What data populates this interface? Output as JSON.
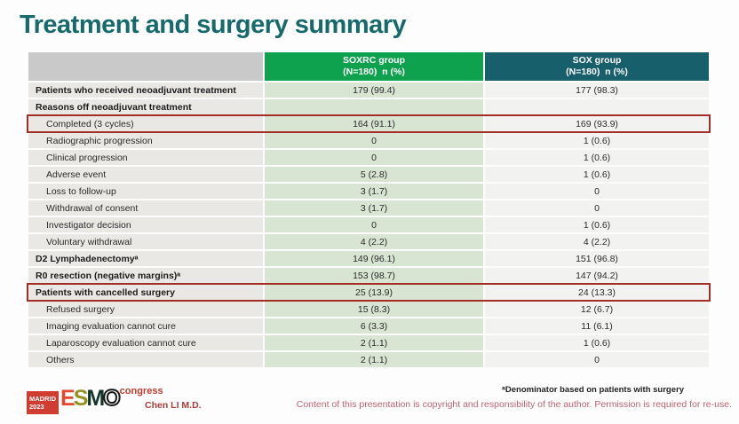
{
  "slide": {
    "title": "Treatment and surgery summary",
    "footnote": "ᵃDenominator based on patients with surgery",
    "copyright": "Content of this presentation is copyright and responsibility of the author.  Permission is required for re-use.",
    "author": "Chen LI M.D."
  },
  "logo": {
    "location": "MADRID",
    "year": "2023",
    "letters": [
      "E",
      "S",
      "M",
      "O"
    ],
    "congress": "congress"
  },
  "table": {
    "columns": [
      {
        "label": "",
        "sublabel": ""
      },
      {
        "label": "SOXRC group",
        "sublabel": "(N=180)  n (%)"
      },
      {
        "label": "SOX group",
        "sublabel": "(N=180)  n (%)"
      }
    ],
    "rows": [
      {
        "label": "Patients who received neoadjuvant treatment",
        "soxrc": "179 (99.4)",
        "sox": "177 (98.3)",
        "bold": true,
        "indent": false,
        "highlight": false
      },
      {
        "label": "Reasons off neoadjuvant treatment",
        "soxrc": "",
        "sox": "",
        "bold": true,
        "indent": false,
        "highlight": false
      },
      {
        "label": "Completed (3 cycles)",
        "soxrc": "164 (91.1)",
        "sox": "169 (93.9)",
        "bold": false,
        "indent": true,
        "highlight": true
      },
      {
        "label": "Radiographic progression",
        "soxrc": "0",
        "sox": "1 (0.6)",
        "bold": false,
        "indent": true,
        "highlight": false
      },
      {
        "label": "Clinical progression",
        "soxrc": "0",
        "sox": "1 (0.6)",
        "bold": false,
        "indent": true,
        "highlight": false
      },
      {
        "label": "Adverse event",
        "soxrc": "5 (2.8)",
        "sox": "1 (0.6)",
        "bold": false,
        "indent": true,
        "highlight": false
      },
      {
        "label": "Loss to follow-up",
        "soxrc": "3 (1.7)",
        "sox": "0",
        "bold": false,
        "indent": true,
        "highlight": false
      },
      {
        "label": "Withdrawal of consent",
        "soxrc": "3 (1.7)",
        "sox": "0",
        "bold": false,
        "indent": true,
        "highlight": false
      },
      {
        "label": "Investigator decision",
        "soxrc": "0",
        "sox": "1 (0.6)",
        "bold": false,
        "indent": true,
        "highlight": false
      },
      {
        "label": "Voluntary withdrawal",
        "soxrc": "4 (2.2)",
        "sox": "4 (2.2)",
        "bold": false,
        "indent": true,
        "highlight": false
      },
      {
        "label": "D2 Lymphadenectomyᵃ",
        "soxrc": "149 (96.1)",
        "sox": "151 (96.8)",
        "bold": true,
        "indent": false,
        "highlight": false
      },
      {
        "label": "R0 resection (negative margins)ᵃ",
        "soxrc": "153 (98.7)",
        "sox": "147 (94.2)",
        "bold": true,
        "indent": false,
        "highlight": false
      },
      {
        "label": "Patients with cancelled surgery",
        "soxrc": "25 (13.9)",
        "sox": "24 (13.3)",
        "bold": true,
        "indent": false,
        "highlight": true
      },
      {
        "label": "Refused surgery",
        "soxrc": "15 (8.3)",
        "sox": "12 (6.7)",
        "bold": false,
        "indent": true,
        "highlight": false
      },
      {
        "label": "Imaging evaluation cannot cure",
        "soxrc": "6 (3.3)",
        "sox": "11 (6.1)",
        "bold": false,
        "indent": true,
        "highlight": false
      },
      {
        "label": "Laparoscopy evaluation cannot cure",
        "soxrc": "2 (1.1)",
        "sox": "1 (0.6)",
        "bold": false,
        "indent": true,
        "highlight": false
      },
      {
        "label": "Others",
        "soxrc": "2 (1.1)",
        "sox": "0",
        "bold": false,
        "indent": true,
        "highlight": false
      }
    ]
  },
  "colors": {
    "title": "#176a6c",
    "header_soxrc_bg": "#0ea24f",
    "header_sox_bg": "#165f6b",
    "header_empty_bg": "#c9c9c9",
    "label_cell_bg": "#e9e8e5",
    "soxrc_cell_bg": "#d8e5d2",
    "sox_cell_bg": "#f2f3f0",
    "highlight_box": "#a32e25",
    "author_text": "#ae3c38",
    "copyright_text": "#c2636e",
    "madrid_badge_bg": "#d13c31"
  }
}
